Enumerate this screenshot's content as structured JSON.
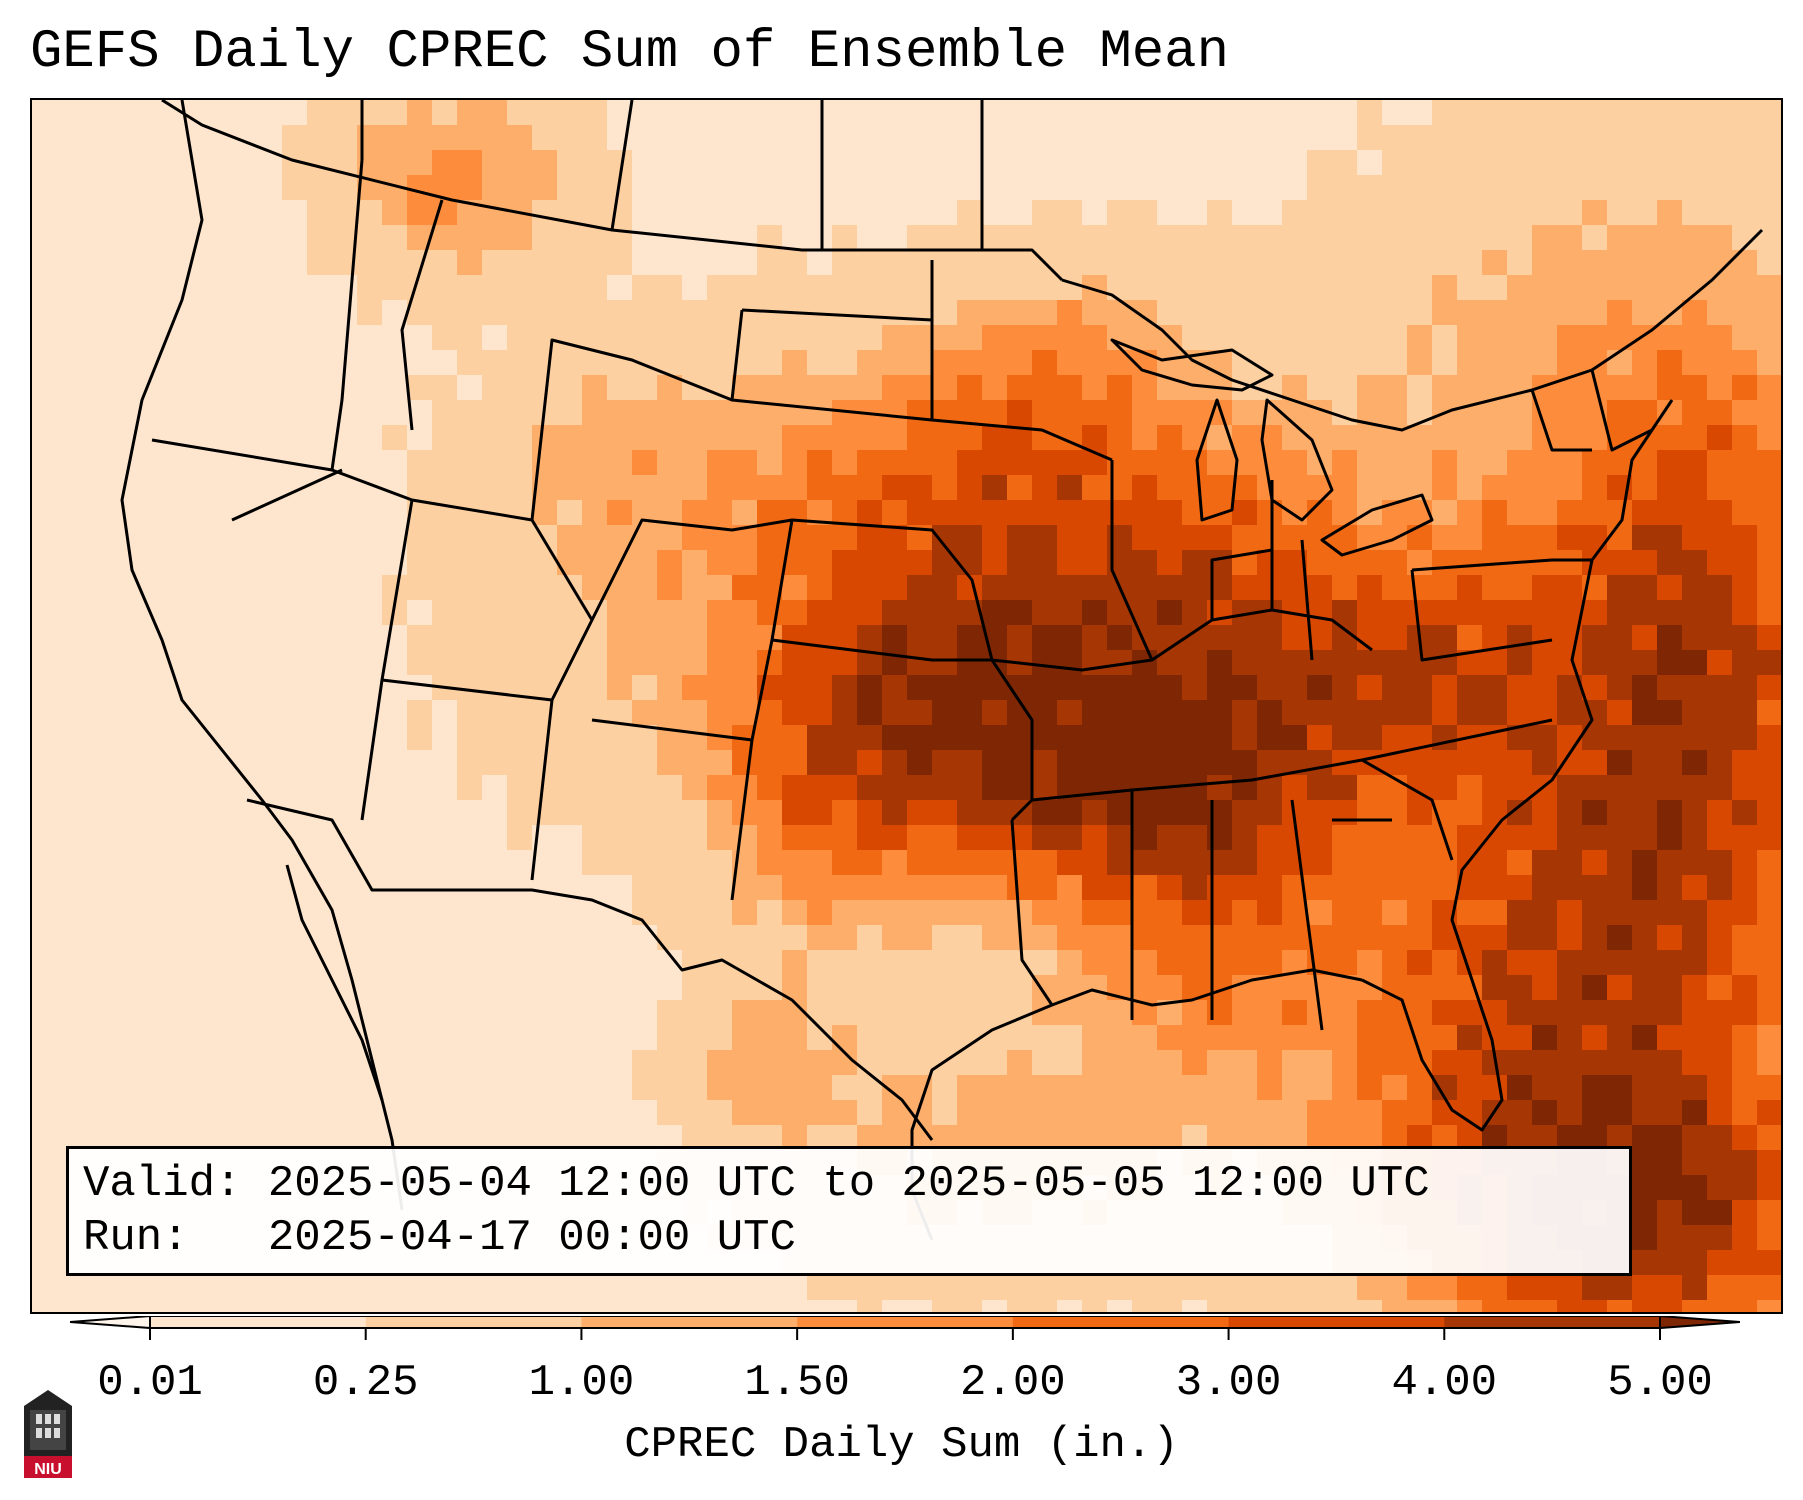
{
  "title": "GEFS Daily CPREC Sum of Ensemble Mean",
  "info": {
    "valid_label": "Valid:",
    "valid_value": "2025-05-04 12:00 UTC to 2025-05-05 12:00 UTC",
    "run_label": "Run:",
    "run_value": "2025-04-17 00:00 UTC"
  },
  "colorbar": {
    "label": "CPREC Daily Sum (in.)",
    "ticks": [
      "0.01",
      "0.25",
      "1.00",
      "1.50",
      "2.00",
      "3.00",
      "4.00",
      "5.00"
    ],
    "colors": [
      "#fff5eb",
      "#fee6ce",
      "#fdd0a2",
      "#fdae6b",
      "#fd8d3c",
      "#f16913",
      "#d94801",
      "#a63603",
      "#7f2704"
    ],
    "extend": "both"
  },
  "map": {
    "region": "CONUS",
    "field": "CPREC",
    "max_region": "central Mississippi valley / Missouri",
    "secondary_max": "western Atlantic off the Carolinas"
  },
  "logo": {
    "text": "NIU",
    "icon": "university-tower-icon"
  }
}
